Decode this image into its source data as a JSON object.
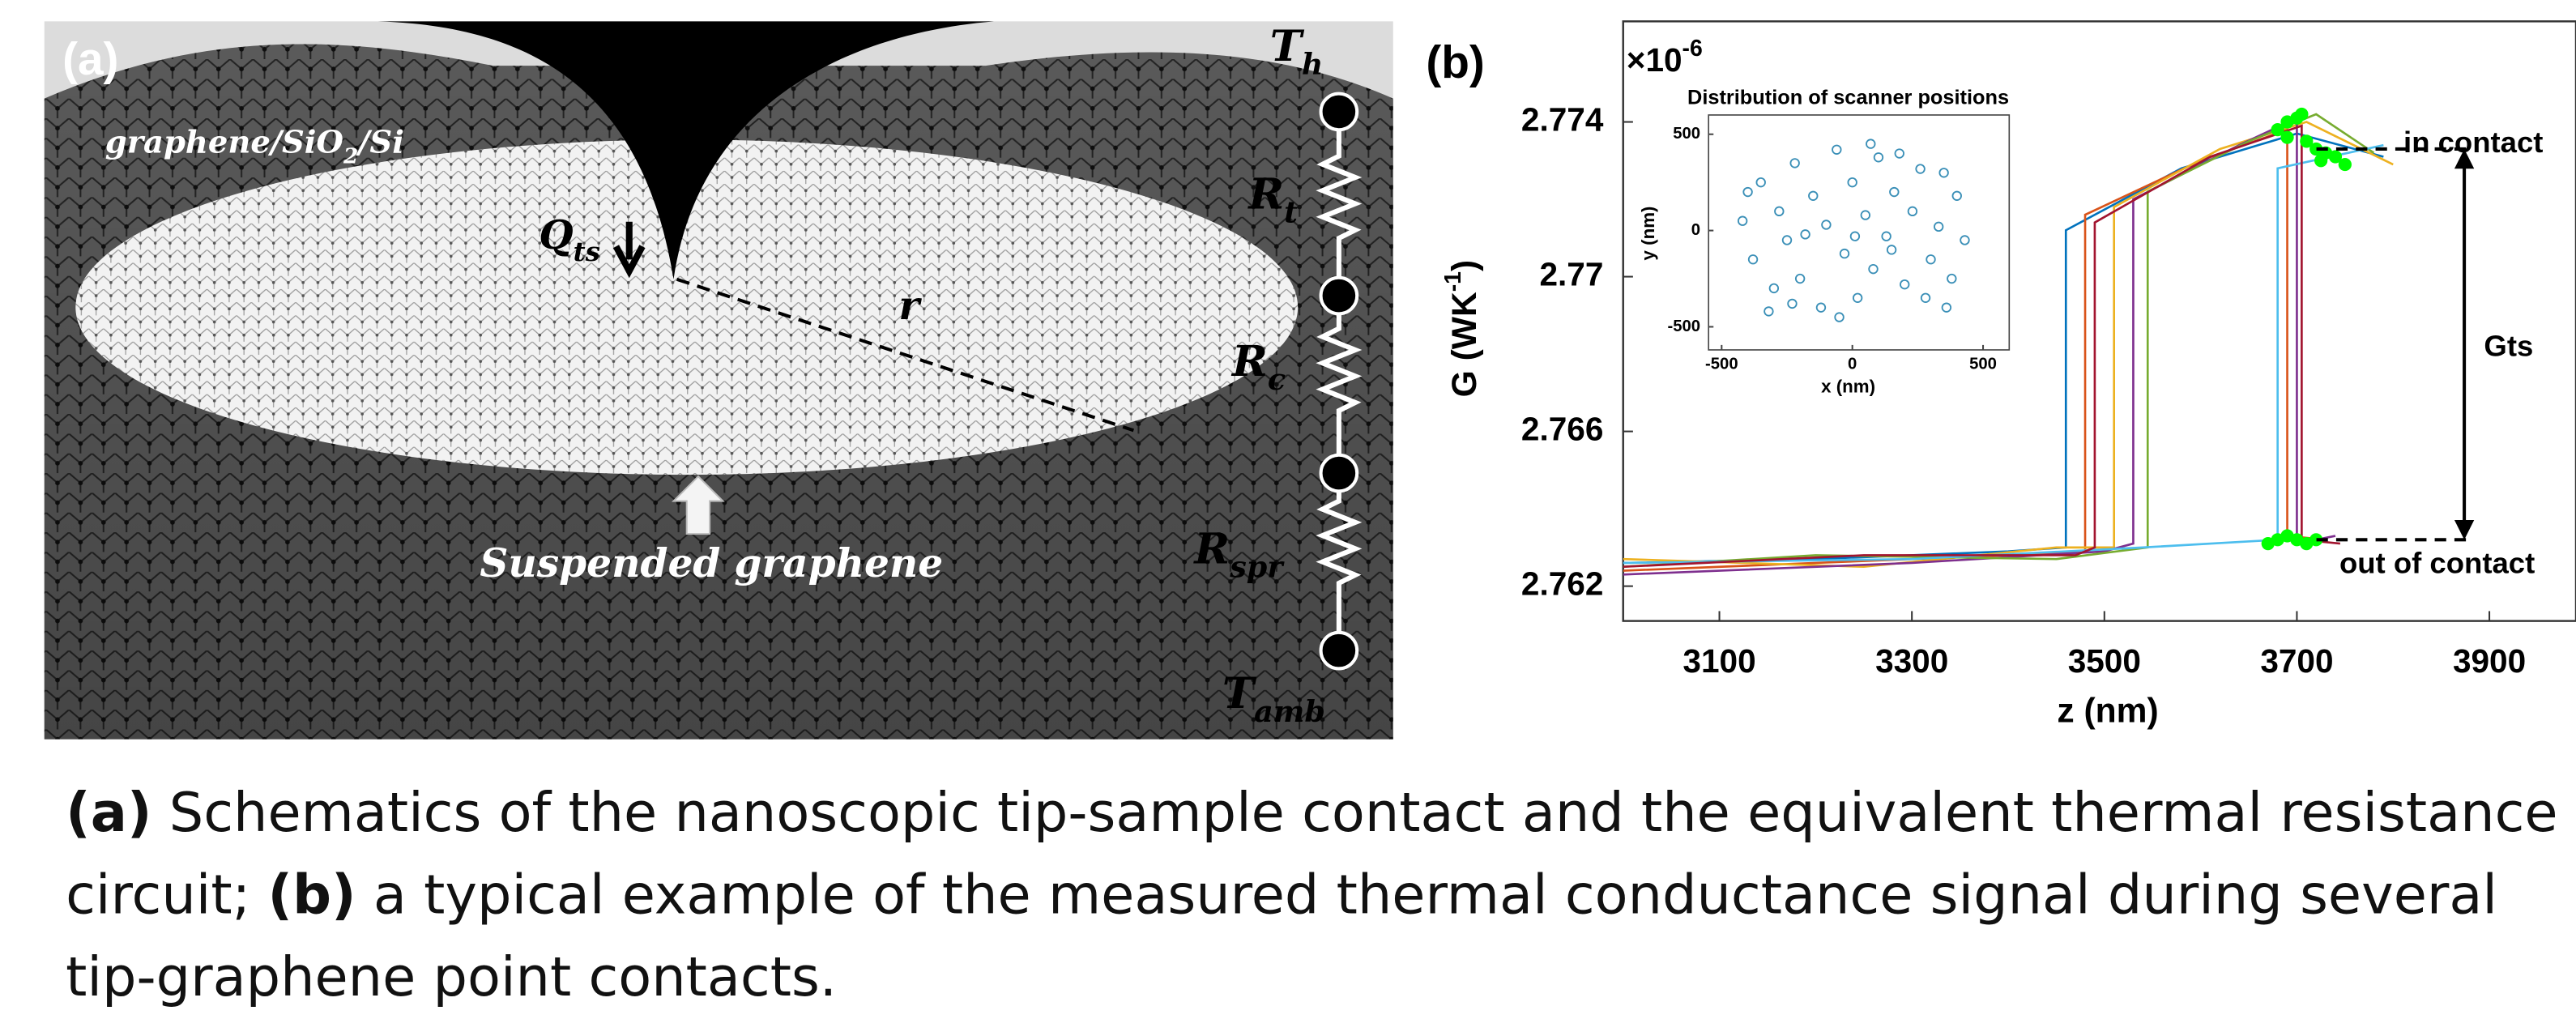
{
  "panel_a": {
    "panel_label": "(a)",
    "substrate": {
      "parts": [
        "graphene/SiO",
        "2",
        "/Si"
      ]
    },
    "t_h": {
      "main": "T",
      "sub": "h"
    },
    "r_t": {
      "main": "R",
      "sub": "t"
    },
    "r_c": {
      "main": "R",
      "sub": "c"
    },
    "r_spr": {
      "main": "R",
      "sub": "spr"
    },
    "t_amb": {
      "main": "T",
      "sub": "amb"
    },
    "q_ts": {
      "main": "Q",
      "sub": "ts"
    },
    "radius": "r",
    "suspended": "Suspended graphene"
  },
  "chart_data": {
    "type": "line",
    "panel_label": "(b)",
    "multiplier": {
      "base": "×10",
      "exponent": "-6"
    },
    "ylabel": {
      "main": "G (WK",
      "sup": "-1",
      "end": ")"
    },
    "xlabel": "z (nm)",
    "xlim": [
      3000,
      3990
    ],
    "ylim": [
      2.7611,
      2.7766
    ],
    "xticks": [
      3100,
      3300,
      3500,
      3700,
      3900
    ],
    "yticks": [
      2.762,
      2.766,
      2.77,
      2.774
    ],
    "series": [
      {
        "color": "#0072bd",
        "x": [
          3000,
          3200,
          3400,
          3460,
          3460,
          3580,
          3700,
          3790
        ],
        "values": [
          2.7626,
          2.7627,
          2.7629,
          2.763,
          2.7712,
          2.7728,
          2.7737,
          2.7731
        ]
      },
      {
        "color": "#d95319",
        "x": [
          3000,
          3200,
          3400,
          3480,
          3480,
          3600,
          3690,
          3690,
          3730
        ],
        "values": [
          2.7624,
          2.7626,
          2.7628,
          2.7629,
          2.7716,
          2.773,
          2.7738,
          2.7633,
          2.7632
        ]
      },
      {
        "color": "#edb120",
        "x": [
          3000,
          3250,
          3450,
          3510,
          3510,
          3620,
          3710,
          3800
        ],
        "values": [
          2.7627,
          2.7625,
          2.763,
          2.763,
          2.7718,
          2.7733,
          2.774,
          2.7729
        ]
      },
      {
        "color": "#7e2f8e",
        "x": [
          3000,
          3300,
          3500,
          3530,
          3530,
          3640,
          3700,
          3700,
          3740
        ],
        "values": [
          2.7623,
          2.7626,
          2.7629,
          2.7631,
          2.772,
          2.7734,
          2.7741,
          2.7631,
          2.7633
        ]
      },
      {
        "color": "#77ac30",
        "x": [
          3000,
          3200,
          3450,
          3545,
          3545,
          3650,
          3720,
          3780
        ],
        "values": [
          2.7625,
          2.7628,
          2.7627,
          2.763,
          2.7722,
          2.7735,
          2.7742,
          2.7732
        ]
      },
      {
        "color": "#4dbeee",
        "x": [
          3000,
          3300,
          3540,
          3680,
          3680,
          3790
        ],
        "values": [
          2.7626,
          2.7627,
          2.763,
          2.7632,
          2.7728,
          2.7734
        ]
      },
      {
        "color": "#a2142f",
        "x": [
          3000,
          3250,
          3470,
          3490,
          3490,
          3610,
          3705,
          3705,
          3745
        ],
        "values": [
          2.7625,
          2.7628,
          2.7628,
          2.763,
          2.7714,
          2.7731,
          2.7739,
          2.7632,
          2.7631
        ]
      }
    ],
    "contact_points": {
      "color": "#00ff00",
      "x": [
        3680,
        3690,
        3700,
        3710,
        3720,
        3730,
        3740,
        3750,
        3690,
        3705,
        3725,
        3670,
        3680,
        3690,
        3700,
        3710,
        3720
      ],
      "values": [
        2.7738,
        2.774,
        2.7741,
        2.7735,
        2.7733,
        2.7732,
        2.7731,
        2.7729,
        2.7736,
        2.7742,
        2.773,
        2.7631,
        2.7632,
        2.7633,
        2.7632,
        2.7631,
        2.7632
      ]
    },
    "reference_lines": [
      2.7733,
      2.7632
    ],
    "annotations": {
      "in_contact": "in contact",
      "out_of_contact": "out of contact",
      "gts": "Gts"
    },
    "inset": {
      "type": "scatter",
      "title": "Distribution of scanner positions",
      "xlabel": "x (nm)",
      "ylabel": "y (nm)",
      "xlim": [
        -550,
        600
      ],
      "ylim": [
        -620,
        600
      ],
      "xticks": [
        -500,
        0,
        500
      ],
      "yticks": [
        -500,
        0,
        500
      ],
      "color": "#3a8fb7",
      "x": [
        -420,
        -380,
        -350,
        -300,
        -280,
        -250,
        -220,
        -200,
        -150,
        -120,
        -100,
        -60,
        -30,
        0,
        20,
        50,
        80,
        100,
        130,
        160,
        200,
        230,
        260,
        300,
        330,
        360,
        400,
        430,
        -320,
        -180,
        -50,
        70,
        180,
        280,
        380,
        -400,
        -230,
        10,
        150,
        350
      ],
      "values": [
        50,
        -150,
        250,
        -300,
        100,
        -50,
        350,
        -250,
        180,
        -400,
        30,
        420,
        -120,
        250,
        -350,
        80,
        -200,
        380,
        -30,
        200,
        -280,
        100,
        320,
        -150,
        20,
        -400,
        180,
        -50,
        -420,
        -20,
        -450,
        450,
        400,
        -350,
        -250,
        200,
        -380,
        -30,
        -100,
        300
      ]
    }
  },
  "caption": {
    "label_a": "(a)",
    "text_a": "Schematics of the nanoscopic tip-sample contact and the equivalent thermal resistance circuit;",
    "label_b": "(b)",
    "text_b": "a typical example of the measured thermal conductance signal during several tip-graphene point contacts."
  }
}
